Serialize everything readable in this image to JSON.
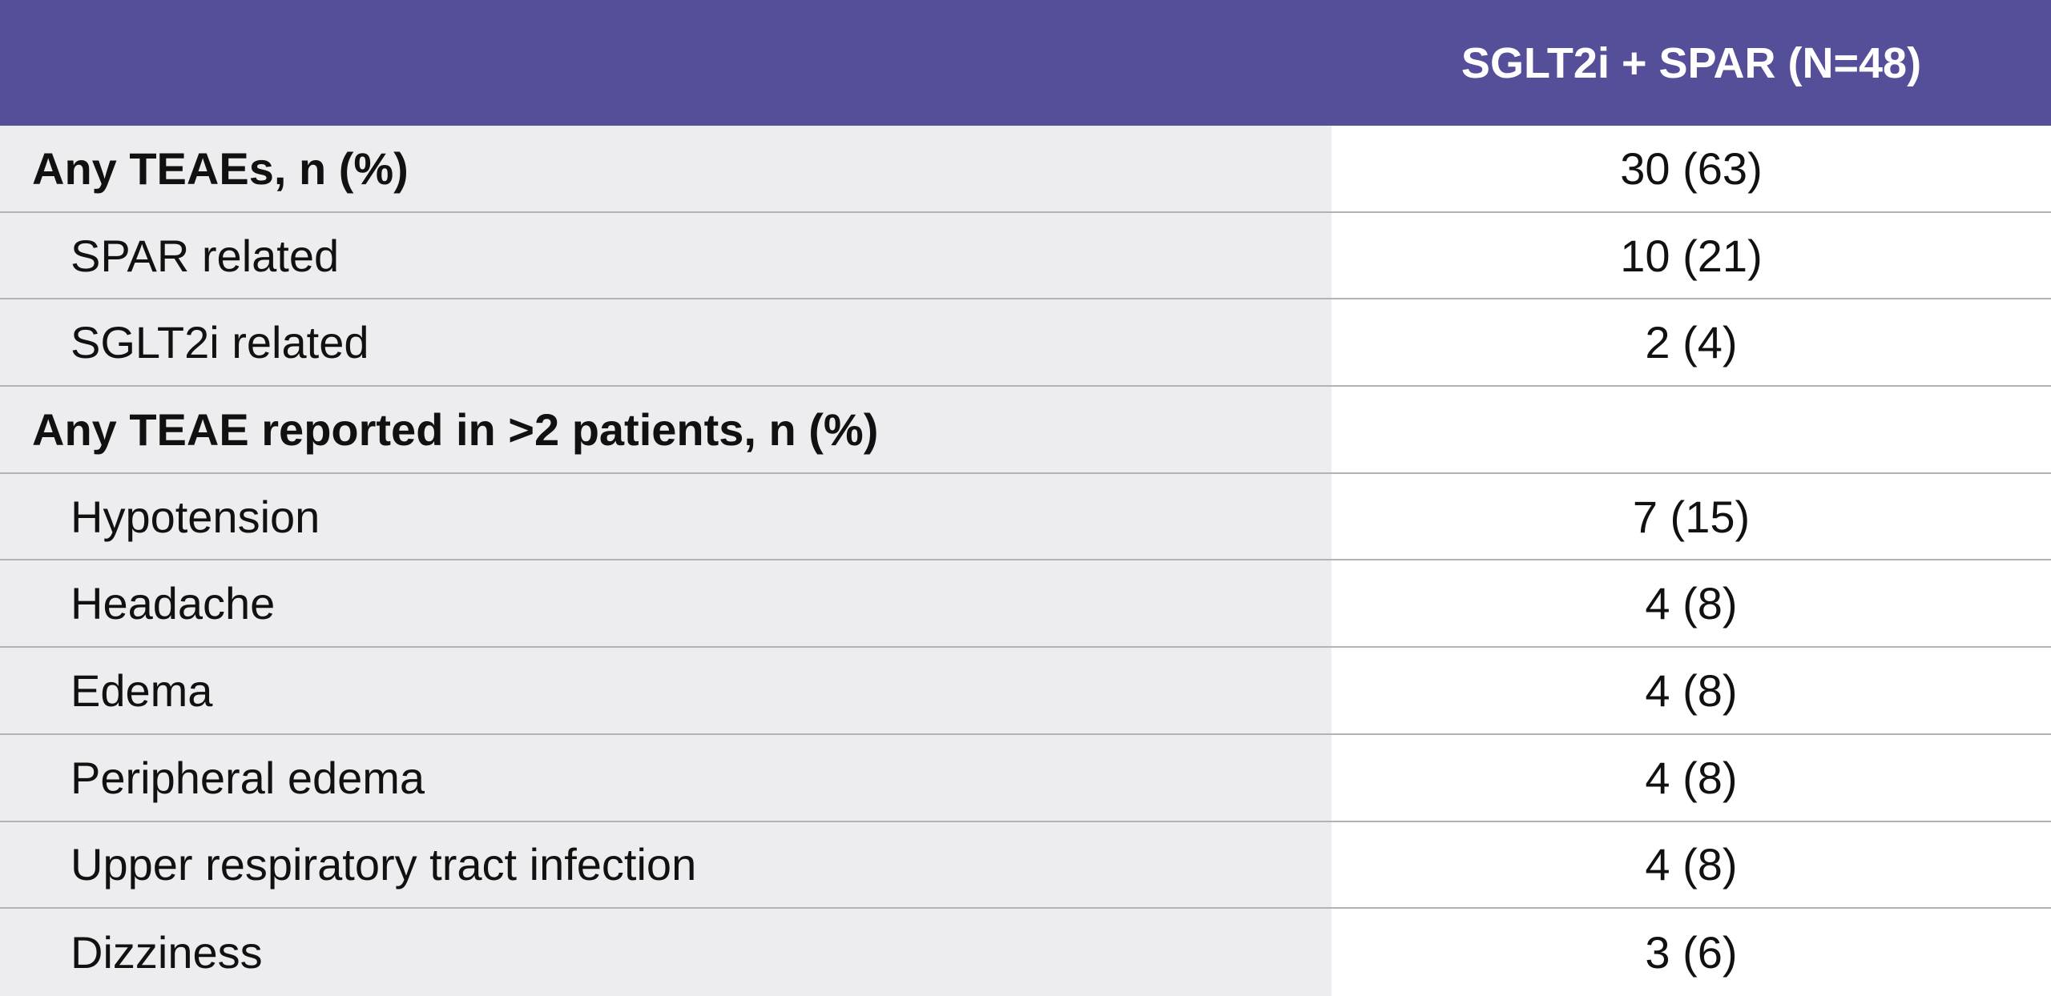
{
  "table": {
    "column": "SGLT2i + SPAR (N=48)",
    "sections": [
      {
        "title": "Any TEAEs, n (%)",
        "value": "30 (63)",
        "items": [
          {
            "label": "SPAR related",
            "value": "10 (21)"
          },
          {
            "label": "SGLT2i related",
            "value": "2 (4)"
          }
        ]
      },
      {
        "title": "Any TEAE reported in >2 patients, n (%)",
        "items": [
          {
            "label": "Hypotension",
            "value": "7 (15)"
          },
          {
            "label": "Headache",
            "value": "4 (8)"
          },
          {
            "label": "Edema",
            "value": "4 (8)"
          },
          {
            "label": "Peripheral edema",
            "value": "4 (8)"
          },
          {
            "label": "Upper respiratory tract infection",
            "value": "4 (8)"
          },
          {
            "label": "Dizziness",
            "value": "3 (6)"
          }
        ]
      }
    ]
  }
}
